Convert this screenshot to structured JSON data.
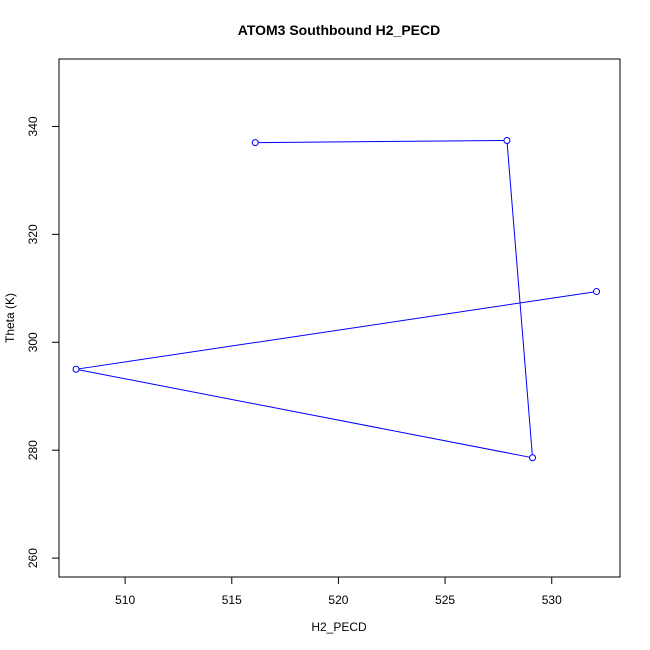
{
  "chart_data": {
    "type": "line",
    "title": "ATOM3 Southbound H2_PECD",
    "xlabel": "H2_PECD",
    "ylabel": "Theta (K)",
    "xlim": [
      506.9,
      533.2
    ],
    "ylim": [
      256.5,
      352.5
    ],
    "xticks": [
      510,
      515,
      520,
      525,
      530
    ],
    "yticks": [
      260,
      280,
      300,
      320,
      340
    ],
    "grid": false,
    "series": [
      {
        "color": "#0000ff",
        "marker": "open-circle",
        "points": [
          {
            "x": 516.1,
            "y": 337.0
          },
          {
            "x": 527.9,
            "y": 337.4
          },
          {
            "x": 529.1,
            "y": 278.6
          },
          {
            "x": 507.7,
            "y": 295.0
          },
          {
            "x": 532.1,
            "y": 309.4
          }
        ]
      }
    ]
  }
}
